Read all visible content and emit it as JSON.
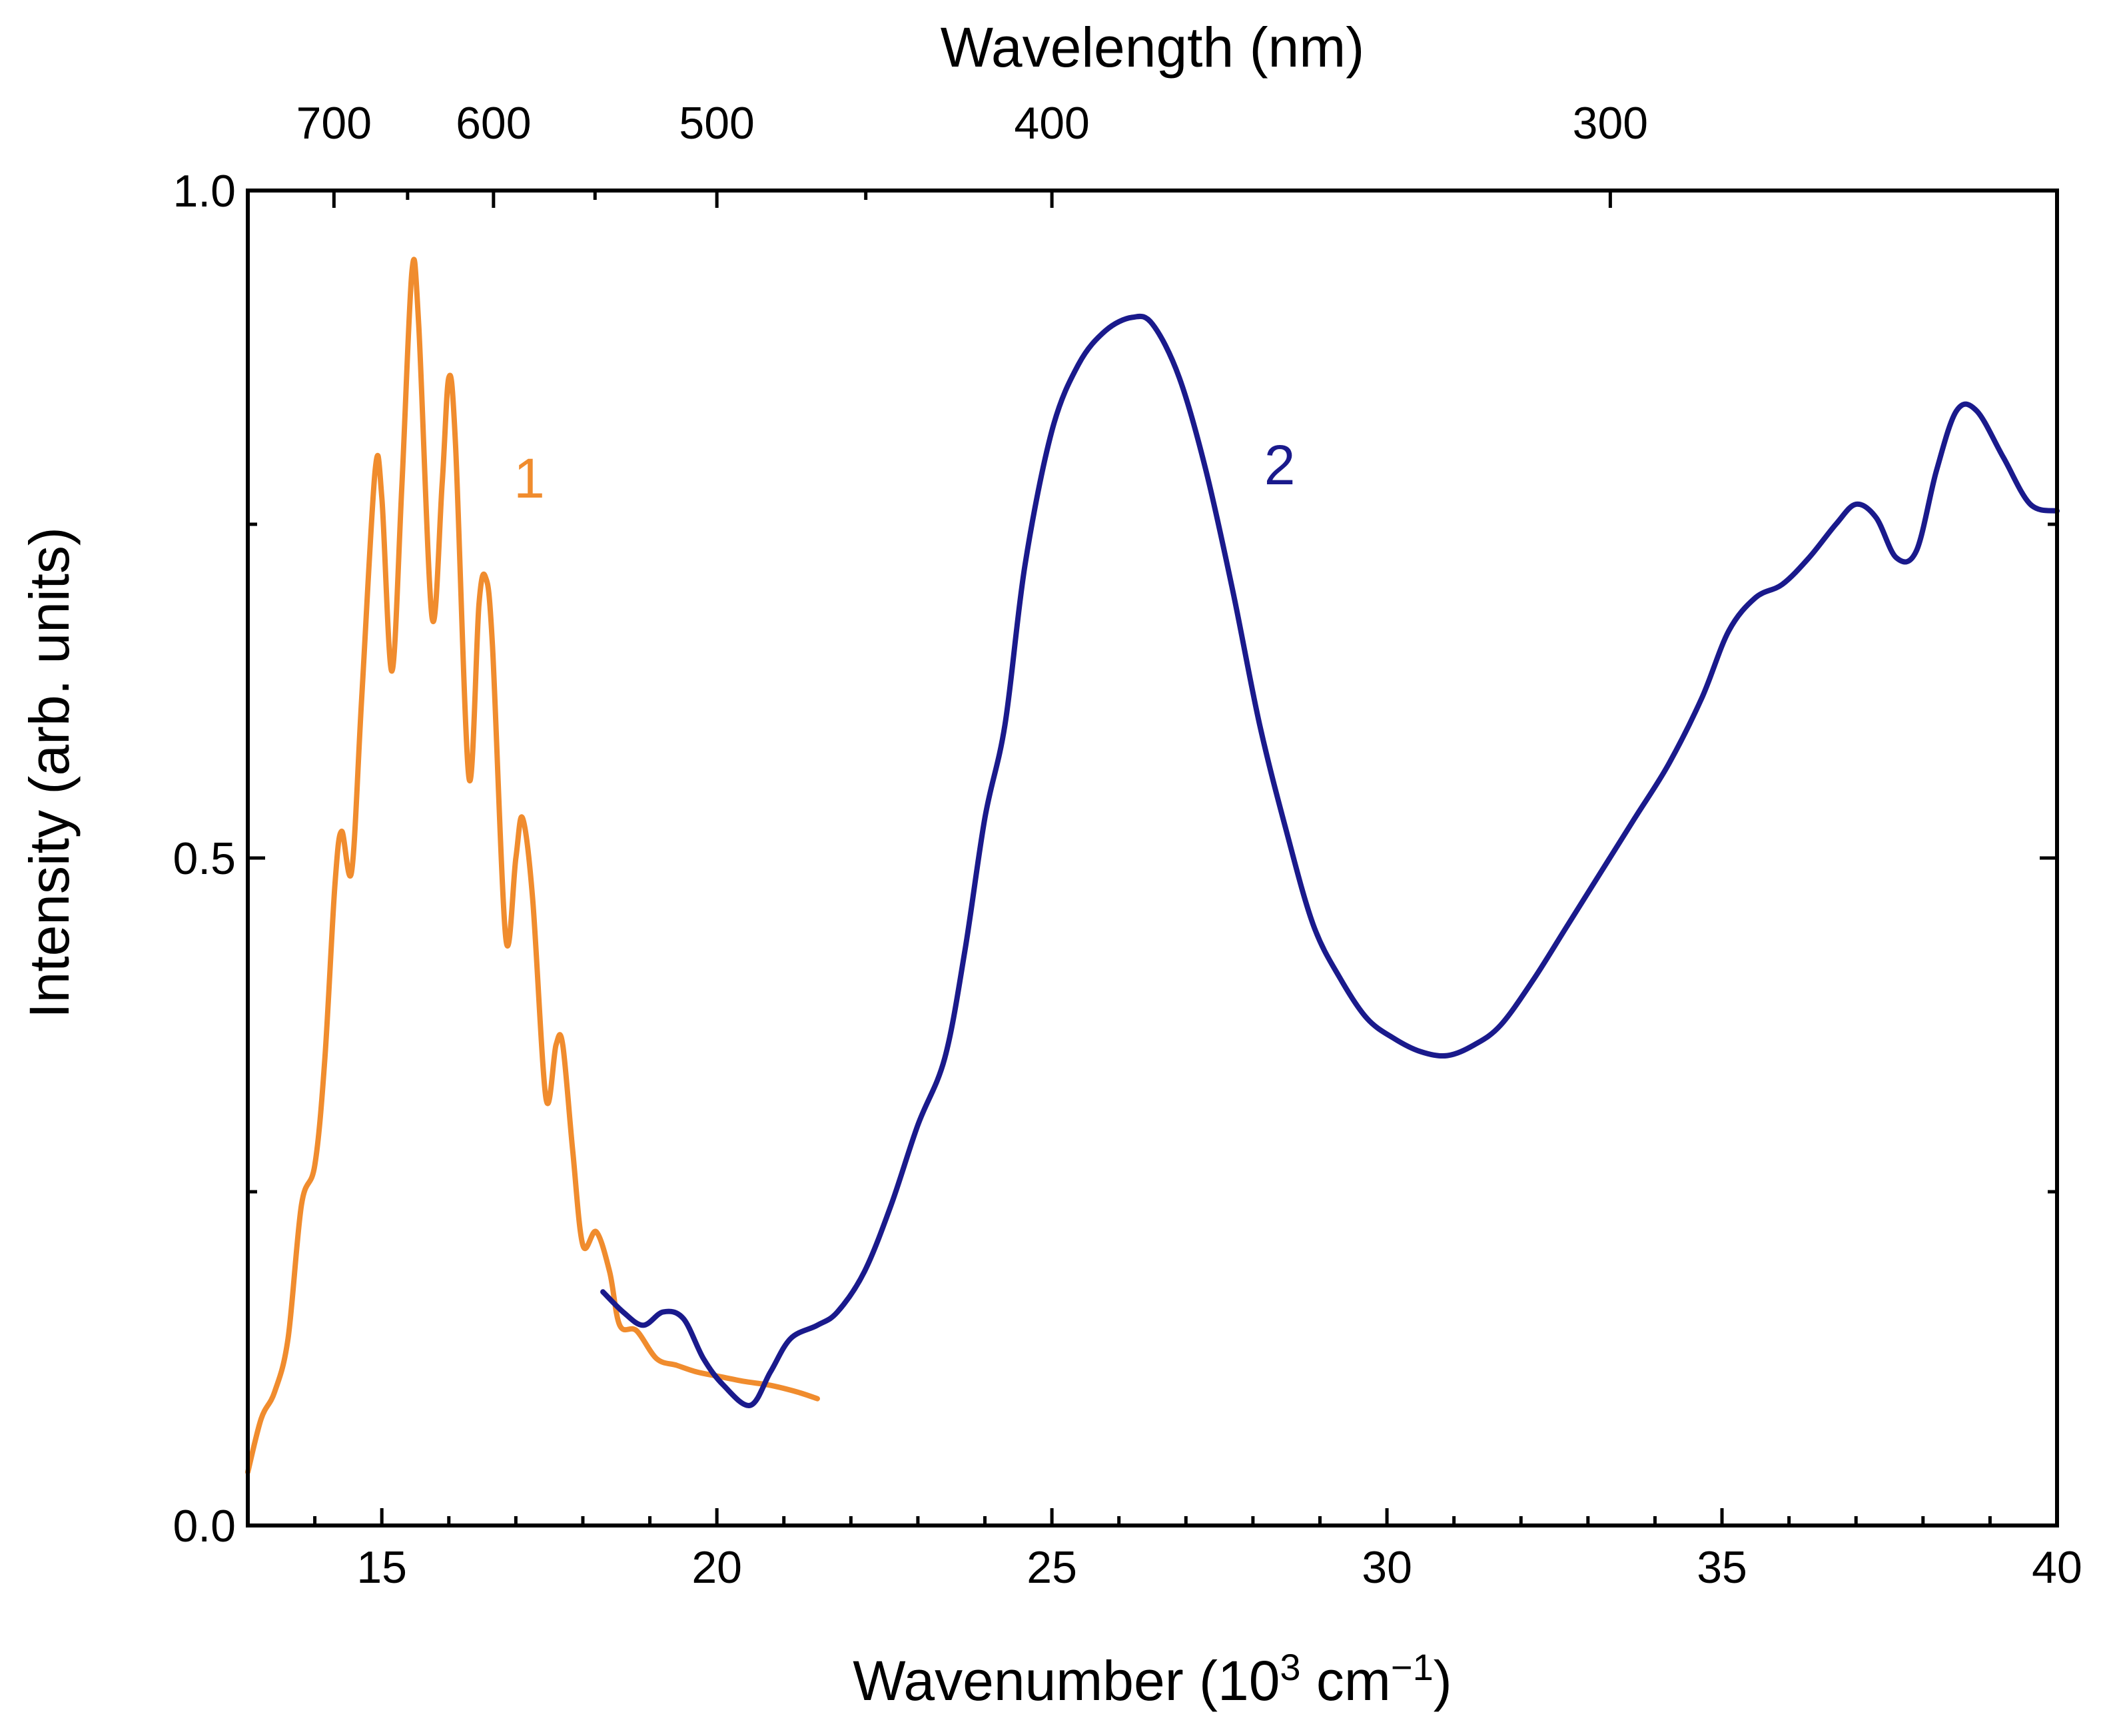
{
  "chart_data": {
    "type": "line",
    "xlabel": "Wavenumber (10³ cm⁻¹)",
    "xlabel_base": "Wavenumber (10",
    "xlabel_sup1": "3",
    "xlabel_mid": " cm",
    "xlabel_sup2": "−1",
    "xlabel_end": ")",
    "ylabel": "Intensity (arb. units)",
    "top_xlabel": "Wavelength (nm)",
    "xlim": [
      13,
      40
    ],
    "ylim": [
      0.0,
      1.0
    ],
    "x_ticks": [
      15,
      20,
      25,
      30,
      35,
      40
    ],
    "x_tick_labels": [
      "15",
      "20",
      "25",
      "30",
      "35",
      "40"
    ],
    "x_minor_ticks": [
      14,
      16,
      17,
      18,
      19,
      21,
      22,
      23,
      24,
      26,
      27,
      28,
      29,
      31,
      32,
      33,
      34,
      36,
      37,
      38,
      39
    ],
    "y_ticks": [
      0.0,
      0.5,
      1.0
    ],
    "y_tick_labels": [
      "0.0",
      "0.5",
      "1.0"
    ],
    "y_minor_ticks": [
      0.25,
      0.75
    ],
    "top_ticks_nm": [
      700,
      600,
      500,
      400,
      300
    ],
    "top_tick_labels": [
      "700",
      "600",
      "500",
      "400",
      "300"
    ],
    "top_minor_ticks_nm": [
      650,
      550,
      450
    ],
    "series": [
      {
        "name": "1",
        "color": "#F08C2E",
        "label_at": [
          17.2,
          0.77
        ],
        "points": [
          [
            13.0,
            0.04
          ],
          [
            13.2,
            0.08
          ],
          [
            13.4,
            0.1
          ],
          [
            13.6,
            0.14
          ],
          [
            13.8,
            0.24
          ],
          [
            14.0,
            0.27
          ],
          [
            14.15,
            0.35
          ],
          [
            14.3,
            0.48
          ],
          [
            14.4,
            0.52
          ],
          [
            14.55,
            0.49
          ],
          [
            14.7,
            0.62
          ],
          [
            14.9,
            0.79
          ],
          [
            15.0,
            0.77
          ],
          [
            15.15,
            0.64
          ],
          [
            15.3,
            0.78
          ],
          [
            15.45,
            0.94
          ],
          [
            15.55,
            0.9
          ],
          [
            15.75,
            0.68
          ],
          [
            15.9,
            0.78
          ],
          [
            16.0,
            0.86
          ],
          [
            16.1,
            0.81
          ],
          [
            16.3,
            0.56
          ],
          [
            16.45,
            0.69
          ],
          [
            16.55,
            0.71
          ],
          [
            16.65,
            0.66
          ],
          [
            16.85,
            0.44
          ],
          [
            17.0,
            0.5
          ],
          [
            17.1,
            0.53
          ],
          [
            17.25,
            0.47
          ],
          [
            17.45,
            0.32
          ],
          [
            17.6,
            0.36
          ],
          [
            17.7,
            0.36
          ],
          [
            17.85,
            0.28
          ],
          [
            18.0,
            0.21
          ],
          [
            18.2,
            0.22
          ],
          [
            18.4,
            0.19
          ],
          [
            18.55,
            0.15
          ],
          [
            18.8,
            0.146
          ],
          [
            19.1,
            0.125
          ],
          [
            19.4,
            0.12
          ],
          [
            19.7,
            0.115
          ],
          [
            20.0,
            0.112
          ],
          [
            20.4,
            0.108
          ],
          [
            20.8,
            0.105
          ],
          [
            21.2,
            0.1
          ],
          [
            21.5,
            0.095
          ]
        ]
      },
      {
        "name": "2",
        "color": "#1A1A8C",
        "label_at": [
          28.4,
          0.78
        ],
        "points": [
          [
            18.3,
            0.175
          ],
          [
            18.6,
            0.16
          ],
          [
            18.9,
            0.15
          ],
          [
            19.2,
            0.16
          ],
          [
            19.5,
            0.155
          ],
          [
            19.8,
            0.125
          ],
          [
            20.1,
            0.105
          ],
          [
            20.5,
            0.09
          ],
          [
            20.8,
            0.115
          ],
          [
            21.1,
            0.14
          ],
          [
            21.5,
            0.15
          ],
          [
            21.8,
            0.16
          ],
          [
            22.2,
            0.19
          ],
          [
            22.6,
            0.24
          ],
          [
            23.0,
            0.3
          ],
          [
            23.4,
            0.35
          ],
          [
            23.7,
            0.43
          ],
          [
            24.0,
            0.53
          ],
          [
            24.3,
            0.6
          ],
          [
            24.6,
            0.72
          ],
          [
            25.0,
            0.82
          ],
          [
            25.4,
            0.87
          ],
          [
            25.8,
            0.895
          ],
          [
            26.2,
            0.905
          ],
          [
            26.5,
            0.9
          ],
          [
            26.9,
            0.86
          ],
          [
            27.3,
            0.79
          ],
          [
            27.7,
            0.7
          ],
          [
            28.1,
            0.6
          ],
          [
            28.5,
            0.52
          ],
          [
            28.9,
            0.45
          ],
          [
            29.3,
            0.41
          ],
          [
            29.7,
            0.38
          ],
          [
            30.1,
            0.365
          ],
          [
            30.5,
            0.355
          ],
          [
            30.9,
            0.352
          ],
          [
            31.3,
            0.36
          ],
          [
            31.7,
            0.375
          ],
          [
            32.2,
            0.41
          ],
          [
            32.7,
            0.45
          ],
          [
            33.2,
            0.49
          ],
          [
            33.7,
            0.53
          ],
          [
            34.2,
            0.57
          ],
          [
            34.7,
            0.62
          ],
          [
            35.1,
            0.67
          ],
          [
            35.5,
            0.695
          ],
          [
            35.9,
            0.705
          ],
          [
            36.3,
            0.725
          ],
          [
            36.7,
            0.75
          ],
          [
            37.0,
            0.765
          ],
          [
            37.3,
            0.755
          ],
          [
            37.6,
            0.725
          ],
          [
            37.9,
            0.73
          ],
          [
            38.2,
            0.79
          ],
          [
            38.5,
            0.835
          ],
          [
            38.8,
            0.835
          ],
          [
            39.2,
            0.8
          ],
          [
            39.6,
            0.765
          ],
          [
            40.0,
            0.76
          ]
        ]
      }
    ]
  }
}
